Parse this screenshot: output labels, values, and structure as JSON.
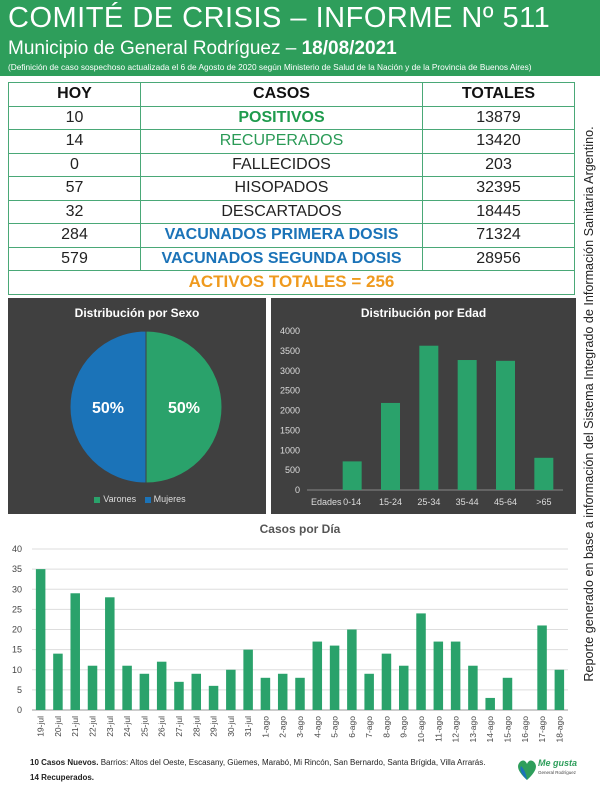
{
  "header": {
    "title": "COMITÉ DE CRISIS – INFORME Nº 511",
    "subtitle_prefix": "Municipio de General Rodríguez – ",
    "date": "18/08/2021",
    "note": "(Definición de caso sospechoso actualizada el 6 de Agosto de 2020 según Ministerio de Salud de la Nación y de la Provincia de Buenos Aires)"
  },
  "table": {
    "headers": [
      "HOY",
      "CASOS",
      "TOTALES"
    ],
    "rows": [
      {
        "hoy": "10",
        "label": "POSITIVOS",
        "total": "13879"
      },
      {
        "hoy": "14",
        "label": "RECUPERADOS",
        "total": "13420"
      },
      {
        "hoy": "0",
        "label": "FALLECIDOS",
        "total": "203"
      },
      {
        "hoy": "57",
        "label": "HISOPADOS",
        "total": "32395"
      },
      {
        "hoy": "32",
        "label": "DESCARTADOS",
        "total": "18445"
      },
      {
        "hoy": "284",
        "label": "VACUNADOS PRIMERA DOSIS",
        "total": "71324"
      },
      {
        "hoy": "579",
        "label": "VACUNADOS SEGUNDA DOSIS",
        "total": "28956"
      }
    ],
    "activos": "ACTIVOS TOTALES = 256"
  },
  "side_note": "Reporte generado en base a información del Sistema Integrado de Información Sanitaria Argentino.",
  "colors": {
    "green": "#2e9e5b",
    "bar": "#2aa26b",
    "blue": "#1b73b8",
    "orange": "#ef9a1e",
    "panel": "#404040"
  },
  "chart_data": [
    {
      "type": "pie",
      "title": "Distribución por Sexo",
      "labels": [
        "Varones",
        "Mujeres"
      ],
      "values": [
        50,
        50
      ],
      "value_labels": [
        "50%",
        "50%"
      ],
      "colors": [
        "#2aa26b",
        "#1b73b8"
      ],
      "legend": "bottom"
    },
    {
      "type": "bar",
      "title": "Distribución por Edad",
      "axis_label": "Edades",
      "categories": [
        "0-14",
        "15-24",
        "25-34",
        "35-44",
        "45-64",
        ">65"
      ],
      "values": [
        720,
        2190,
        3630,
        3270,
        3250,
        810
      ],
      "ylim": [
        0,
        4000
      ],
      "yticks": [
        0,
        500,
        1000,
        1500,
        2000,
        2500,
        3000,
        3500,
        4000
      ],
      "grid": false
    },
    {
      "type": "bar",
      "title": "Casos por Día",
      "categories": [
        "19-jul",
        "20-jul",
        "21-jul",
        "22-jul",
        "23-jul",
        "24-jul",
        "25-jul",
        "26-jul",
        "27-jul",
        "28-jul",
        "29-jul",
        "30-jul",
        "31-jul",
        "1-ago",
        "2-ago",
        "3-ago",
        "4-ago",
        "5-ago",
        "6-ago",
        "7-ago",
        "8-ago",
        "9-ago",
        "10-ago",
        "11-ago",
        "12-ago",
        "13-ago",
        "14-ago",
        "15-ago",
        "16-ago",
        "17-ago",
        "18-ago"
      ],
      "values": [
        35,
        14,
        29,
        11,
        28,
        11,
        9,
        12,
        7,
        9,
        6,
        10,
        15,
        8,
        9,
        8,
        17,
        16,
        20,
        9,
        14,
        11,
        24,
        17,
        17,
        11,
        3,
        8,
        0,
        21,
        10
      ],
      "ylim": [
        0,
        40
      ],
      "yticks": [
        0,
        5,
        10,
        15,
        20,
        25,
        30,
        35,
        40
      ],
      "grid": true
    }
  ],
  "footer": {
    "line1_bold": "10 Casos Nuevos.",
    "line1_rest": " Barrios: Altos del Oeste, Escasany, Güemes, Marabó, Mi Rincón, San Bernardo, Santa Brígida, Villa Arrarás.",
    "line2": "14 Recuperados."
  },
  "logo": {
    "text": "Me gusta",
    "sub": "General Rodríguez"
  }
}
